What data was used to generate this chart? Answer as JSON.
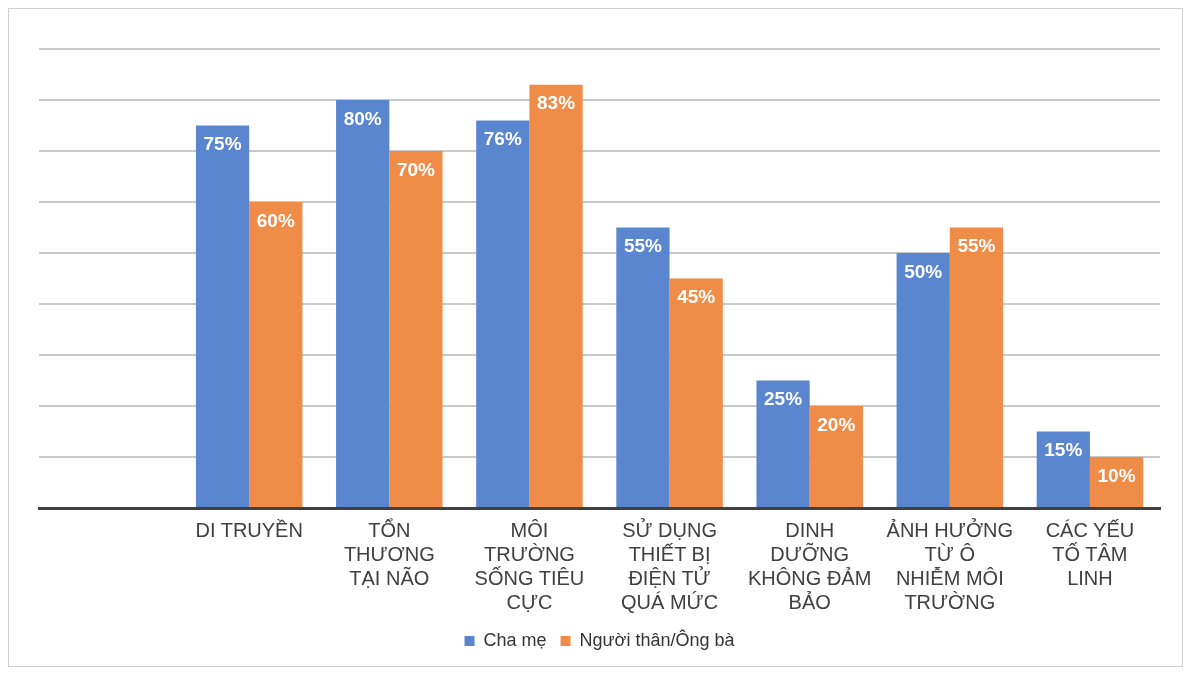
{
  "chart_data": {
    "type": "bar",
    "categories": [
      null,
      "DI TRUYỀN",
      "TỔN THƯƠNG TẠI NÃO",
      "MÔI TRƯỜNG SỐNG TIÊU CỰC",
      "SỬ DỤNG THIẾT BỊ ĐIỆN TỬ QUÁ MỨC",
      "DINH DƯỠNG KHÔNG ĐẢM BẢO",
      "ẢNH HƯỞNG TỪ Ô NHIỄM MÔI TRƯỜNG",
      "CÁC YẾU TỐ TÂM LINH"
    ],
    "series": [
      {
        "name": "Cha mẹ",
        "color": "#5a86d0",
        "values": [
          null,
          75,
          80,
          76,
          55,
          25,
          50,
          15
        ],
        "value_labels": [
          null,
          "75%",
          "80%",
          "76%",
          "55%",
          "25%",
          "50%",
          "15%"
        ]
      },
      {
        "name": "Người thân/Ông bà",
        "color": "#ee8c48",
        "values": [
          null,
          60,
          70,
          83,
          45,
          20,
          55,
          10
        ],
        "value_labels": [
          null,
          "60%",
          "70%",
          "83%",
          "45%",
          "20%",
          "55%",
          "10%"
        ]
      }
    ],
    "ylim": [
      0,
      90
    ],
    "yticks": [
      {
        "value": 0,
        "label": null
      },
      {
        "value": 10,
        "label": null
      },
      {
        "value": 20,
        "label": null
      },
      {
        "value": 30,
        "label": null
      },
      {
        "value": 40,
        "label": null
      },
      {
        "value": 50,
        "label": null
      },
      {
        "value": 60,
        "label": null
      },
      {
        "value": 70,
        "label": null
      },
      {
        "value": 80,
        "label": null
      },
      {
        "value": 90,
        "label": null
      }
    ],
    "grid": "y",
    "legend": "bottom",
    "tick_labels": "x"
  }
}
